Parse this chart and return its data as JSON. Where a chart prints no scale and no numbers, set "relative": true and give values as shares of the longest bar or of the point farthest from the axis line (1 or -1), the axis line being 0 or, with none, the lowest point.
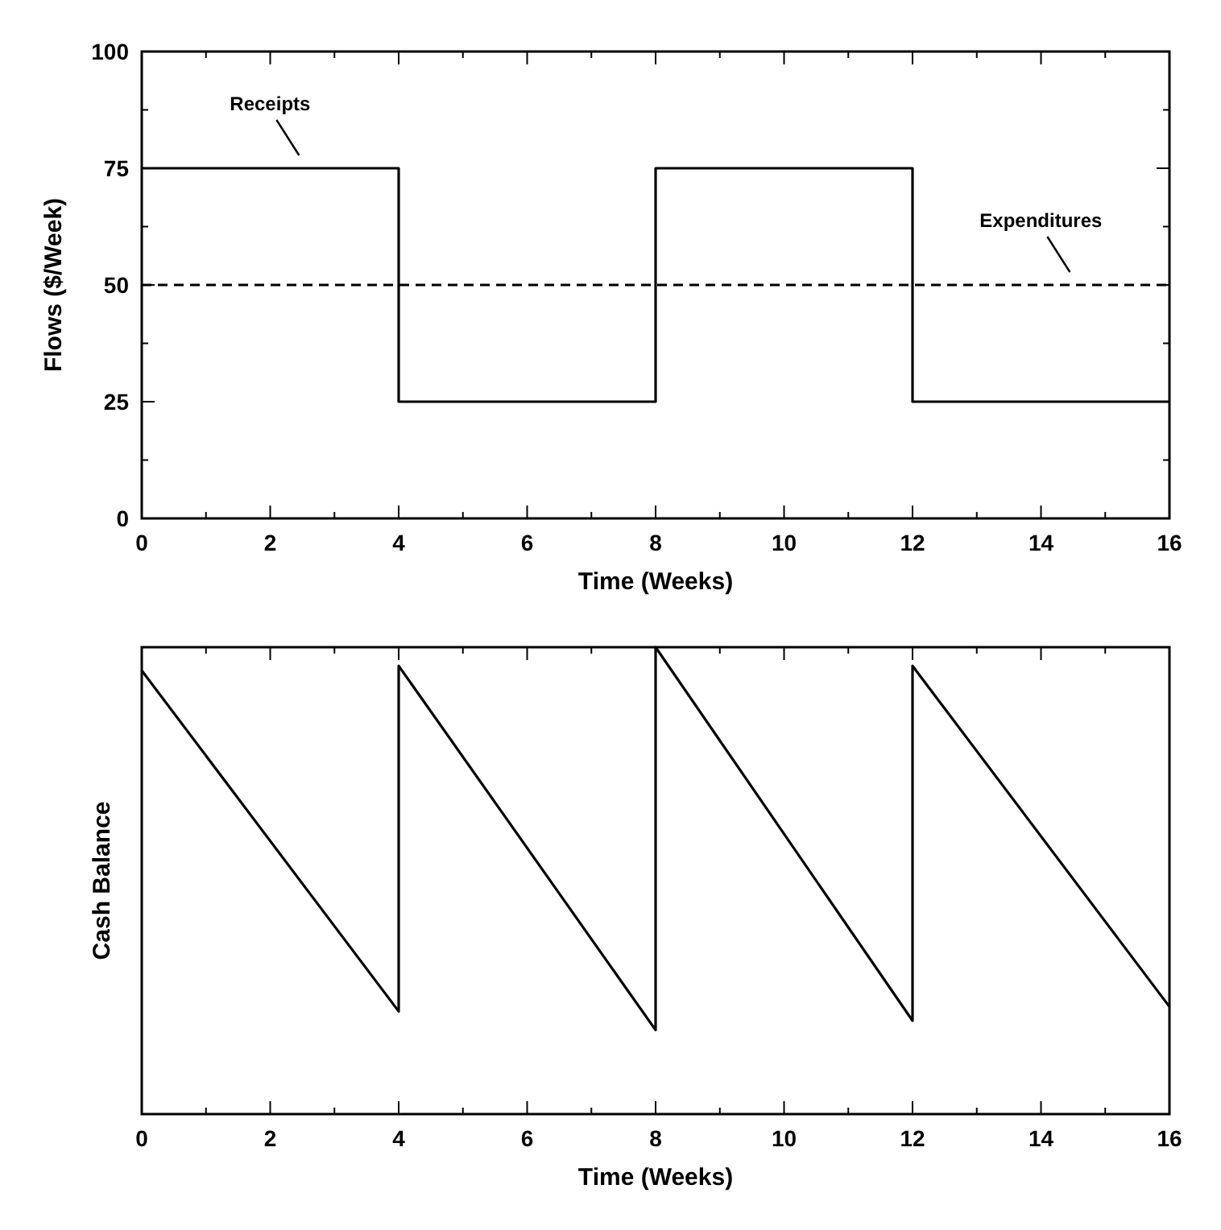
{
  "chart_data": [
    {
      "type": "line",
      "ylabel": "Flows ($/Week)",
      "xlabel": "Time (Weeks)",
      "xlim": [
        0,
        16
      ],
      "xticks": [
        0,
        {
          "value": 1,
          "label": null
        },
        2,
        {
          "value": 3,
          "label": null
        },
        4,
        {
          "value": 5,
          "label": null
        },
        6,
        {
          "value": 7,
          "label": null
        },
        8,
        {
          "value": 9,
          "label": null
        },
        10,
        {
          "value": 11,
          "label": null
        },
        12,
        {
          "value": 13,
          "label": null
        },
        14,
        {
          "value": 15,
          "label": null
        },
        16
      ],
      "ylim": [
        0,
        100
      ],
      "yticks": [
        0,
        {
          "value": 12.5,
          "label": null
        },
        25,
        {
          "value": 37.5,
          "label": null
        },
        50,
        {
          "value": 62.5,
          "label": null
        },
        75,
        {
          "value": 87.5,
          "label": null
        },
        100
      ],
      "series": [
        {
          "type": "step",
          "color": "#000000",
          "line_style": "solid",
          "x": [
            0,
            4,
            8,
            12,
            16
          ],
          "values": [
            75,
            25,
            75,
            25,
            25
          ]
        },
        {
          "type": "line",
          "color": "#000000",
          "line_style": "dashed",
          "x": [
            0,
            16
          ],
          "values": [
            50,
            50
          ]
        }
      ],
      "annotations": [
        {
          "text": "Receipts",
          "x": 2.5,
          "y": 75
        },
        {
          "text": "Expenditures",
          "x": 14.5,
          "y": 50
        }
      ]
    },
    {
      "type": "line",
      "relative": true,
      "ylabel": "Cash Balance",
      "xlabel": "Time (Weeks)",
      "xlim": [
        0,
        16
      ],
      "xticks": [
        0,
        {
          "value": 1,
          "label": null
        },
        2,
        {
          "value": 3,
          "label": null
        },
        4,
        {
          "value": 5,
          "label": null
        },
        6,
        {
          "value": 7,
          "label": null
        },
        8,
        {
          "value": 9,
          "label": null
        },
        10,
        {
          "value": 11,
          "label": null
        },
        12,
        {
          "value": 13,
          "label": null
        },
        14,
        {
          "value": 15,
          "label": null
        },
        16
      ],
      "series": [
        {
          "color": "#000000",
          "line_style": "solid",
          "x": [
            0,
            4,
            4,
            8,
            8,
            12,
            12,
            16
          ],
          "values": [
            0.95,
            0.22,
            0.96,
            0.18,
            1,
            0.2,
            0.96,
            0.23
          ]
        }
      ]
    }
  ]
}
